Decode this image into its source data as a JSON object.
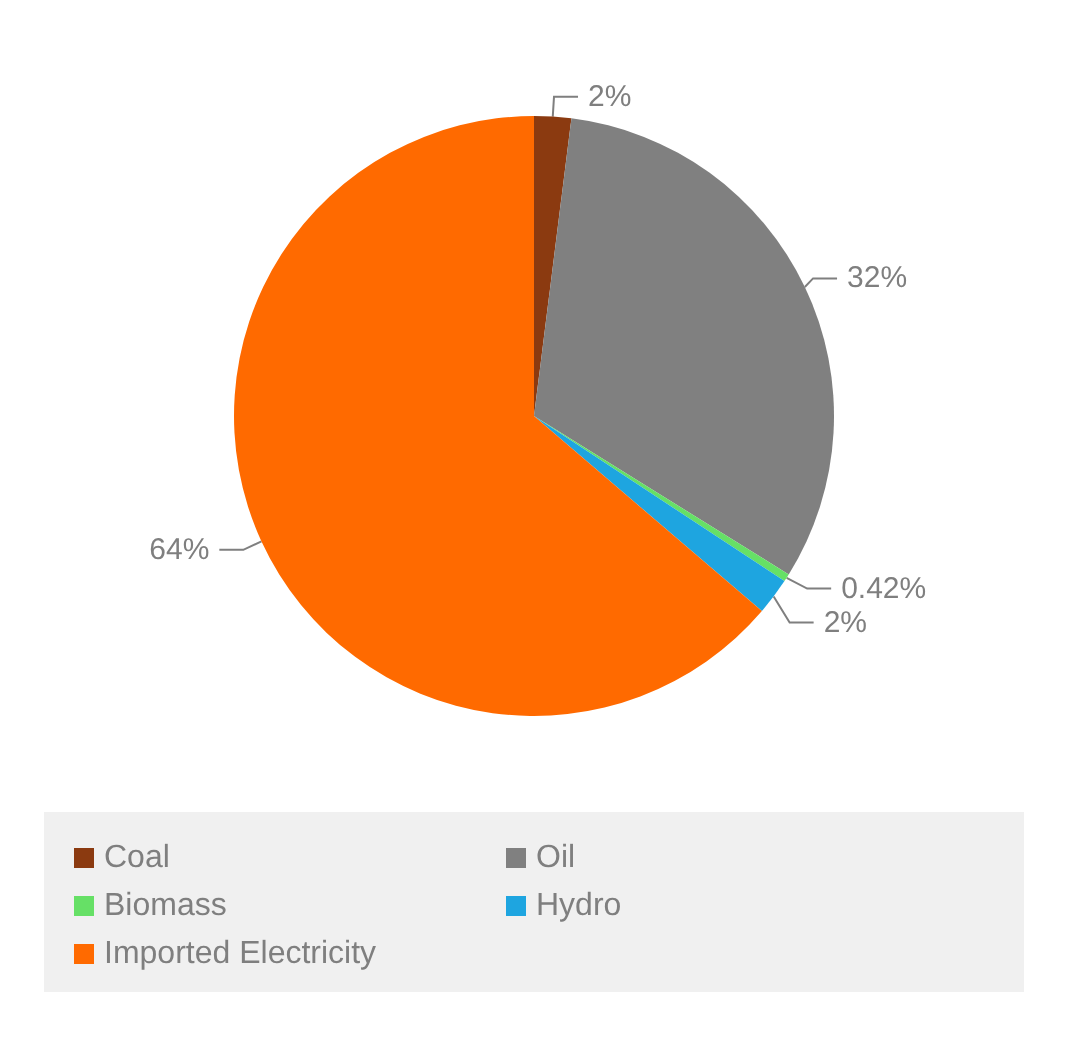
{
  "chart_data": {
    "type": "pie",
    "categories": [
      "Coal",
      "Oil",
      "Biomass",
      "Hydro",
      "Imported Electricity"
    ],
    "values": [
      2,
      32,
      0.42,
      2,
      64
    ],
    "value_labels": [
      "2%",
      "32%",
      "0.42%",
      "2%",
      "64%"
    ],
    "colors": [
      "#8b3a10",
      "#808080",
      "#66e066",
      "#1ea5e0",
      "#ff6a00"
    ],
    "legend": "bottom"
  }
}
